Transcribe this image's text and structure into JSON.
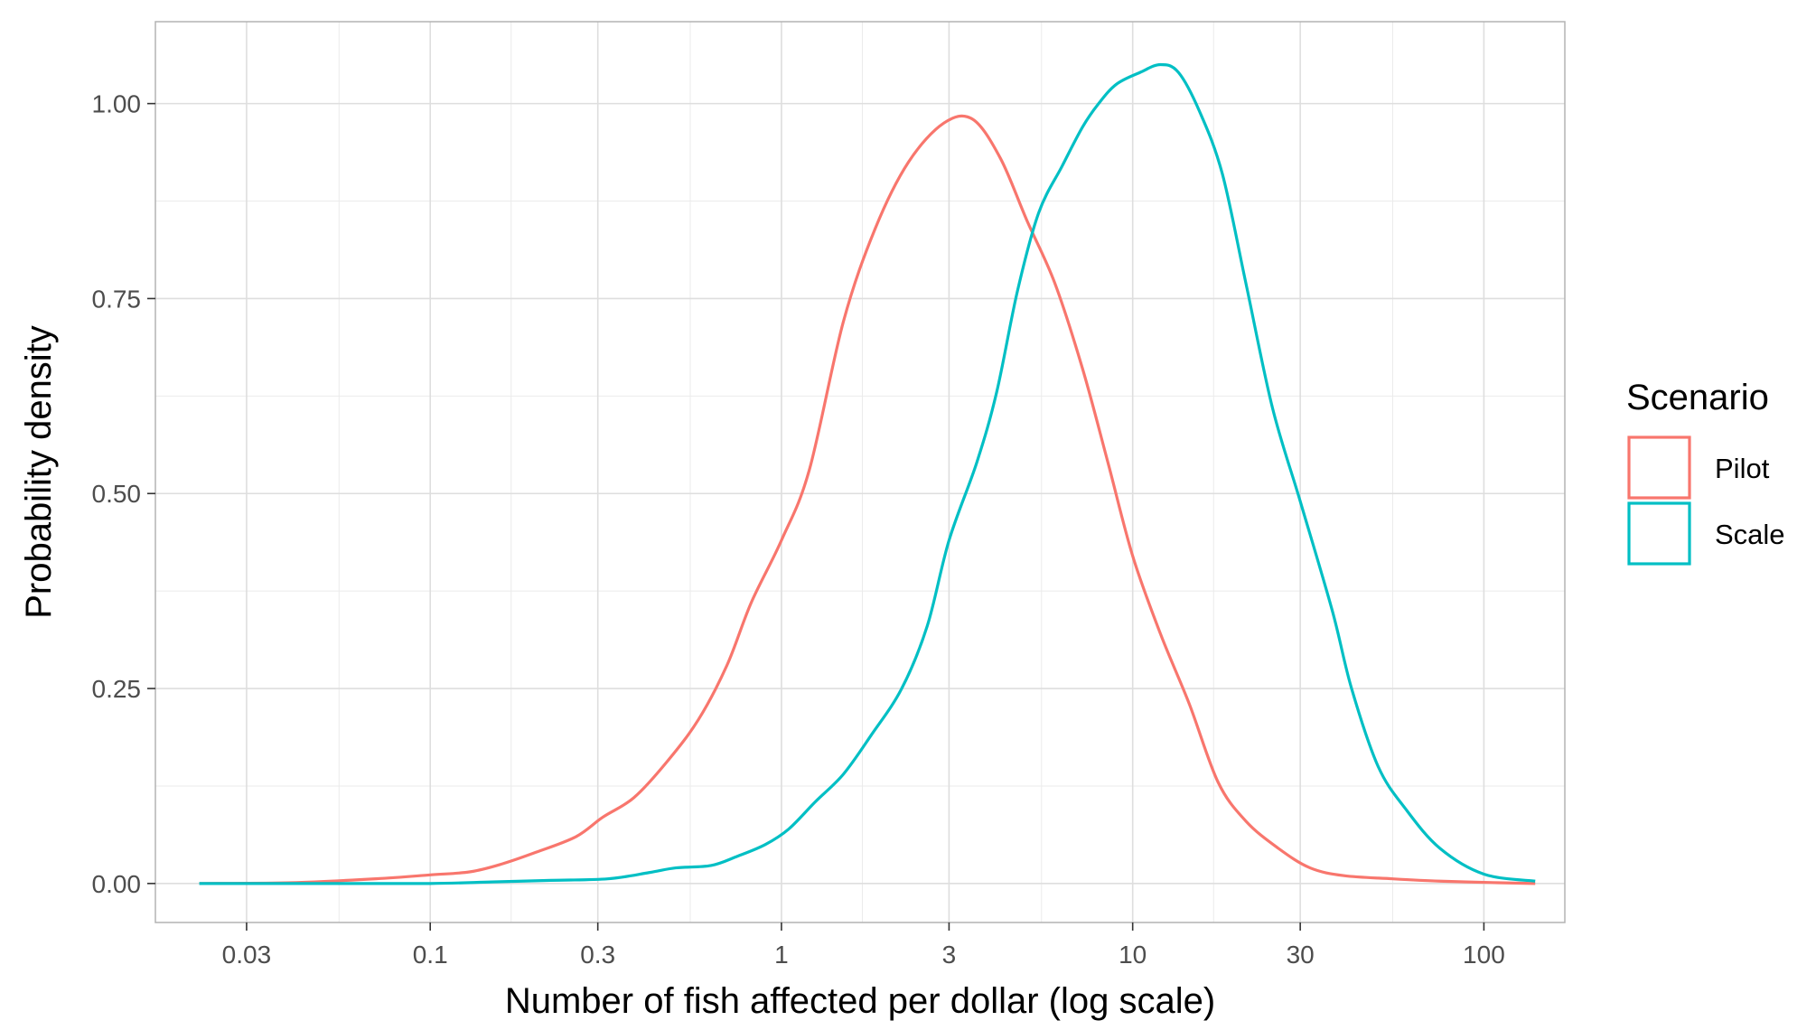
{
  "chart_data": {
    "type": "line",
    "title": "",
    "xlabel": "Number of fish affected per dollar (log scale)",
    "ylabel": "Probability density",
    "x_scale": "log10",
    "xlim": [
      0.0165,
      170
    ],
    "ylim": [
      -0.05,
      1.105
    ],
    "x_ticks": [
      0.03,
      0.1,
      0.3,
      1,
      3,
      10,
      30,
      100
    ],
    "x_tick_labels": [
      "0.03",
      "0.1",
      "0.3",
      "1",
      "3",
      "10",
      "30",
      "100"
    ],
    "x_minor_gridlines": [
      0.055,
      0.17,
      0.55,
      1.7,
      5.5,
      17,
      55
    ],
    "y_ticks": [
      0,
      0.25,
      0.5,
      0.75,
      1.0
    ],
    "y_tick_labels": [
      "0.00",
      "0.25",
      "0.50",
      "0.75",
      "1.00"
    ],
    "y_minor_gridlines": [
      0.125,
      0.375,
      0.625,
      0.875
    ],
    "grid": true,
    "legend": {
      "title": "Scenario",
      "position": "right"
    },
    "series": [
      {
        "name": "Pilot",
        "color": "#F8766D",
        "points": [
          [
            0.022,
            0.0
          ],
          [
            0.04,
            0.001
          ],
          [
            0.07,
            0.006
          ],
          [
            0.1,
            0.011
          ],
          [
            0.13,
            0.015
          ],
          [
            0.16,
            0.025
          ],
          [
            0.2,
            0.04
          ],
          [
            0.26,
            0.06
          ],
          [
            0.31,
            0.085
          ],
          [
            0.38,
            0.11
          ],
          [
            0.47,
            0.155
          ],
          [
            0.58,
            0.21
          ],
          [
            0.7,
            0.28
          ],
          [
            0.82,
            0.36
          ],
          [
            1.0,
            0.44
          ],
          [
            1.2,
            0.53
          ],
          [
            1.5,
            0.72
          ],
          [
            1.85,
            0.84
          ],
          [
            2.3,
            0.925
          ],
          [
            2.9,
            0.975
          ],
          [
            3.5,
            0.98
          ],
          [
            4.2,
            0.93
          ],
          [
            5.0,
            0.85
          ],
          [
            6.0,
            0.77
          ],
          [
            7.2,
            0.66
          ],
          [
            8.5,
            0.54
          ],
          [
            10.0,
            0.42
          ],
          [
            12.0,
            0.32
          ],
          [
            14.5,
            0.23
          ],
          [
            17.5,
            0.13
          ],
          [
            21.0,
            0.08
          ],
          [
            26.0,
            0.045
          ],
          [
            32.0,
            0.02
          ],
          [
            40.0,
            0.01
          ],
          [
            55.0,
            0.006
          ],
          [
            75.0,
            0.003
          ],
          [
            110.0,
            0.001
          ],
          [
            140.0,
            0.0
          ]
        ]
      },
      {
        "name": "Scale",
        "color": "#00BFC4",
        "points": [
          [
            0.022,
            0.0
          ],
          [
            0.05,
            0.0
          ],
          [
            0.1,
            0.0
          ],
          [
            0.15,
            0.002
          ],
          [
            0.22,
            0.004
          ],
          [
            0.32,
            0.006
          ],
          [
            0.42,
            0.014
          ],
          [
            0.5,
            0.02
          ],
          [
            0.63,
            0.023
          ],
          [
            0.75,
            0.035
          ],
          [
            0.9,
            0.05
          ],
          [
            1.05,
            0.07
          ],
          [
            1.25,
            0.105
          ],
          [
            1.5,
            0.14
          ],
          [
            1.8,
            0.19
          ],
          [
            2.2,
            0.25
          ],
          [
            2.6,
            0.33
          ],
          [
            3.0,
            0.44
          ],
          [
            3.6,
            0.54
          ],
          [
            4.1,
            0.63
          ],
          [
            4.7,
            0.76
          ],
          [
            5.4,
            0.86
          ],
          [
            6.3,
            0.92
          ],
          [
            7.2,
            0.97
          ],
          [
            8.0,
            1.0
          ],
          [
            9.0,
            1.025
          ],
          [
            10.5,
            1.04
          ],
          [
            12.0,
            1.05
          ],
          [
            13.5,
            1.04
          ],
          [
            15.5,
            0.99
          ],
          [
            18.0,
            0.91
          ],
          [
            21.0,
            0.77
          ],
          [
            25.0,
            0.61
          ],
          [
            30.0,
            0.49
          ],
          [
            37.0,
            0.35
          ],
          [
            42.0,
            0.25
          ],
          [
            50.0,
            0.15
          ],
          [
            60.0,
            0.095
          ],
          [
            75.0,
            0.045
          ],
          [
            100.0,
            0.012
          ],
          [
            140.0,
            0.003
          ]
        ]
      }
    ]
  }
}
